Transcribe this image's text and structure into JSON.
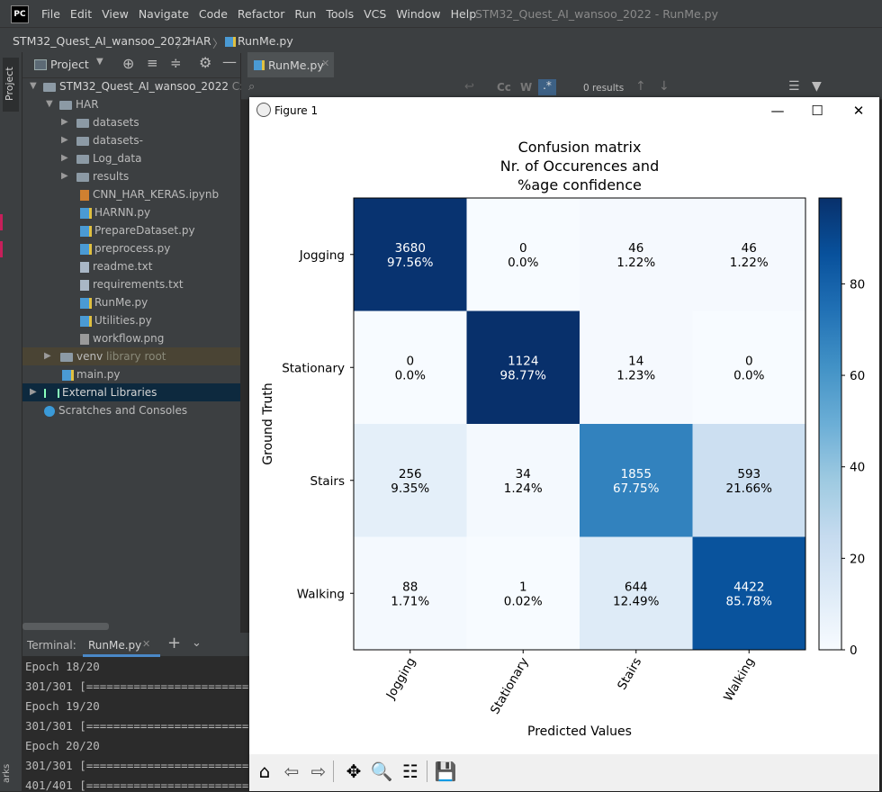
{
  "menubar": {
    "logo": "PC",
    "items": [
      "File",
      "Edit",
      "View",
      "Navigate",
      "Code",
      "Refactor",
      "Run",
      "Tools",
      "VCS",
      "Window",
      "Help"
    ],
    "window_title": "STM32_Quest_AI_wansoo_2022 - RunMe.py"
  },
  "breadcrumb": [
    "STM32_Quest_AI_wansoo_2022",
    "HAR",
    "RunMe.py"
  ],
  "side_strip": {
    "label": "Project"
  },
  "project_panel": {
    "title": "Project",
    "root": "STM32_Quest_AI_wansoo_2022",
    "root_path": "C:\\",
    "har": "HAR",
    "folders": [
      "datasets",
      "datasets-",
      "Log_data",
      "results"
    ],
    "files": [
      "CNN_HAR_KERAS.ipynb",
      "HARNN.py",
      "PrepareDataset.py",
      "preprocess.py",
      "readme.txt",
      "requirements.txt",
      "RunMe.py",
      "Utilities.py",
      "workflow.png"
    ],
    "venv": "venv",
    "venv_note": "library root",
    "main": "main.py",
    "external": "External Libraries",
    "scratches": "Scratches and Consoles"
  },
  "editor": {
    "tab": "RunMe.py",
    "search_results": "0 results",
    "search_cc": "Cc",
    "search_w": "W"
  },
  "terminal": {
    "label": "Terminal:",
    "tab": "RunMe.py",
    "lines": [
      "Epoch 18/20",
      "301/301 [========================",
      "Epoch 19/20",
      "301/301 [========================",
      "Epoch 20/20",
      "301/301 [========================",
      "401/401 [========================"
    ],
    "side_label": "arks"
  },
  "figure": {
    "title": "Figure 1",
    "min": "—",
    "max": "☐",
    "close": "✕"
  },
  "toolbar_icons": [
    "home-icon",
    "back-icon",
    "forward-icon",
    "pan-icon",
    "zoom-icon",
    "configure-icon",
    "save-icon"
  ],
  "chart_data": {
    "type": "heatmap",
    "title": [
      "Confusion matrix",
      "Nr. of Occurences and",
      "%age confidence"
    ],
    "xlabel": "Predicted Values",
    "ylabel": "Ground Truth",
    "x_categories": [
      "Jogging",
      "Stationary",
      "Stairs",
      "Walking"
    ],
    "y_categories": [
      "Jogging",
      "Stationary",
      "Stairs",
      "Walking"
    ],
    "counts": [
      [
        3680,
        0,
        46,
        46
      ],
      [
        0,
        1124,
        14,
        0
      ],
      [
        256,
        34,
        1855,
        593
      ],
      [
        88,
        1,
        644,
        4422
      ]
    ],
    "percent_labels": [
      [
        "97.56%",
        "0.0%",
        "1.22%",
        "1.22%"
      ],
      [
        "0.0%",
        "98.77%",
        "1.23%",
        "0.0%"
      ],
      [
        "9.35%",
        "1.24%",
        "67.75%",
        "21.66%"
      ],
      [
        "1.71%",
        "0.02%",
        "12.49%",
        "85.78%"
      ]
    ],
    "percent_values": [
      [
        97.56,
        0.0,
        1.22,
        1.22
      ],
      [
        0.0,
        98.77,
        1.23,
        0.0
      ],
      [
        9.35,
        1.24,
        67.75,
        21.66
      ],
      [
        1.71,
        0.02,
        12.49,
        85.78
      ]
    ],
    "colormap": "Blues",
    "colorbar_ticks": [
      "0",
      "20",
      "40",
      "60",
      "80"
    ],
    "colorbar_range": [
      0,
      98.77
    ]
  }
}
